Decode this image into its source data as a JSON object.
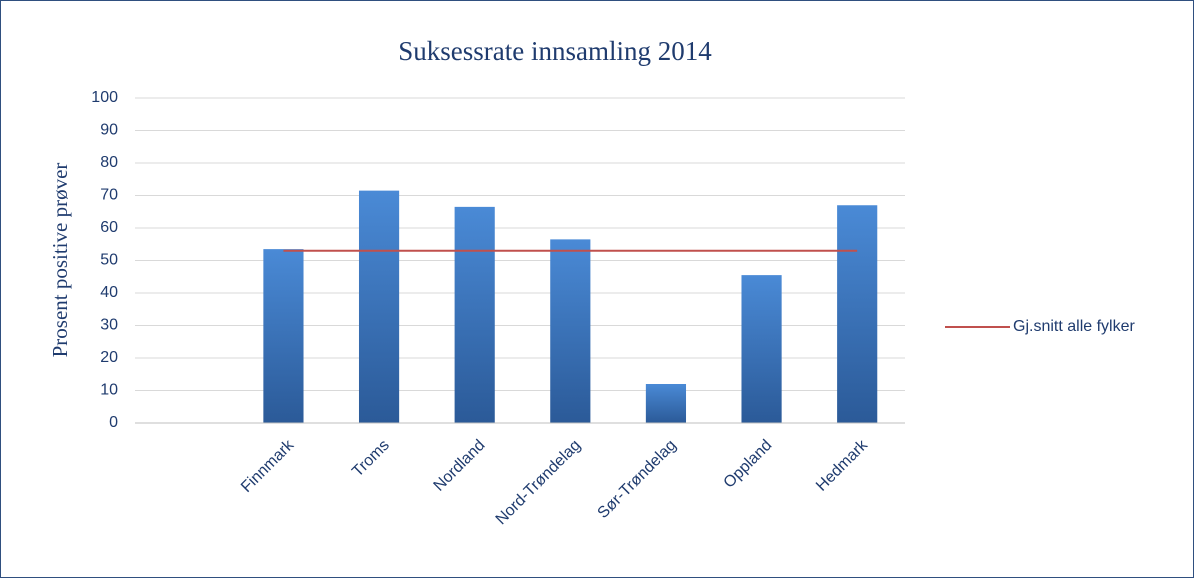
{
  "chart_data": {
    "type": "bar",
    "title": "Suksessrate innsamling 2014",
    "y_label": "Prosent positive prøver",
    "categories": [
      null,
      "Finnmark",
      "Troms",
      "Nordland",
      "Nord-Trøndelag",
      "Sør-Trøndelag",
      "Oppland",
      "Hedmark"
    ],
    "series": [
      {
        "type": "bar",
        "color": "#3b73bd",
        "values": [
          null,
          53.5,
          71.5,
          66.5,
          56.5,
          12,
          45.5,
          67
        ]
      },
      {
        "type": "line",
        "name": "Gj.snitt alle fylker",
        "color": "#c0504d",
        "values": [
          null,
          53,
          53,
          53,
          53,
          53,
          53,
          53
        ]
      }
    ],
    "ylim": [
      0,
      100
    ],
    "yticks": [
      0,
      10,
      20,
      30,
      40,
      50,
      60,
      70,
      80,
      90,
      100
    ],
    "grid": true,
    "legend": "right"
  }
}
